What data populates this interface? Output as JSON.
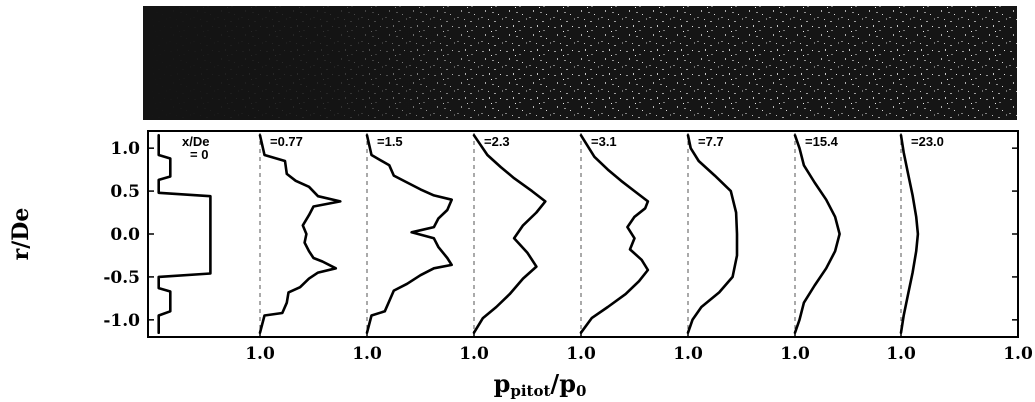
{
  "chart_data": {
    "type": "line",
    "title": "",
    "xlabel": {
      "main": "p",
      "sub": "pitot",
      "tail": "/p",
      "tail_sub": "0"
    },
    "ylabel": "r/De",
    "ylim": [
      -1.2,
      1.2
    ],
    "y_ticks": [
      "1.0",
      "0.5",
      "0.0",
      "-0.5",
      "-1.0"
    ],
    "y_tick_values": [
      1.0,
      0.5,
      0.0,
      -0.5,
      -1.0
    ],
    "x_tick_labels": [
      "1.0",
      "1.0",
      "1.0",
      "1.0",
      "1.0",
      "1.0",
      "1.0",
      "1.0"
    ],
    "panel_x_range": [
      0,
      1.2
    ],
    "stations": [
      {
        "label_line1": "x/De",
        "label_line2": "= 0",
        "points": [
          [
            0.12,
            -1.15
          ],
          [
            0.12,
            -0.95
          ],
          [
            0.25,
            -0.9
          ],
          [
            0.25,
            -0.67
          ],
          [
            0.12,
            -0.63
          ],
          [
            0.12,
            -0.5
          ],
          [
            0.7,
            -0.46
          ],
          [
            0.7,
            0.44
          ],
          [
            0.12,
            0.48
          ],
          [
            0.12,
            0.63
          ],
          [
            0.25,
            0.67
          ],
          [
            0.25,
            0.88
          ],
          [
            0.12,
            0.92
          ],
          [
            0.12,
            1.15
          ]
        ]
      },
      {
        "label_line1": "=0.77",
        "points": [
          [
            0.0,
            -1.15
          ],
          [
            0.05,
            -0.95
          ],
          [
            0.25,
            -0.92
          ],
          [
            0.3,
            -0.8
          ],
          [
            0.32,
            -0.68
          ],
          [
            0.45,
            -0.62
          ],
          [
            0.55,
            -0.52
          ],
          [
            0.65,
            -0.45
          ],
          [
            0.85,
            -0.4
          ],
          [
            0.7,
            -0.32
          ],
          [
            0.6,
            -0.28
          ],
          [
            0.55,
            -0.2
          ],
          [
            0.5,
            -0.1
          ],
          [
            0.52,
            0.0
          ],
          [
            0.48,
            0.1
          ],
          [
            0.55,
            0.22
          ],
          [
            0.6,
            0.32
          ],
          [
            0.9,
            0.38
          ],
          [
            0.65,
            0.44
          ],
          [
            0.55,
            0.55
          ],
          [
            0.4,
            0.62
          ],
          [
            0.3,
            0.7
          ],
          [
            0.28,
            0.85
          ],
          [
            0.05,
            0.92
          ],
          [
            0.0,
            1.15
          ]
        ]
      },
      {
        "label_line1": "=1.5",
        "points": [
          [
            0.0,
            -1.15
          ],
          [
            0.05,
            -0.95
          ],
          [
            0.2,
            -0.9
          ],
          [
            0.25,
            -0.78
          ],
          [
            0.3,
            -0.66
          ],
          [
            0.45,
            -0.58
          ],
          [
            0.6,
            -0.48
          ],
          [
            0.75,
            -0.4
          ],
          [
            0.95,
            -0.36
          ],
          [
            0.9,
            -0.28
          ],
          [
            0.8,
            -0.15
          ],
          [
            0.75,
            -0.05
          ],
          [
            0.5,
            0.02
          ],
          [
            0.75,
            0.08
          ],
          [
            0.8,
            0.18
          ],
          [
            0.9,
            0.28
          ],
          [
            0.95,
            0.4
          ],
          [
            0.75,
            0.45
          ],
          [
            0.6,
            0.52
          ],
          [
            0.45,
            0.6
          ],
          [
            0.3,
            0.68
          ],
          [
            0.25,
            0.8
          ],
          [
            0.05,
            0.92
          ],
          [
            0.0,
            1.15
          ]
        ]
      },
      {
        "label_line1": "=2.3",
        "points": [
          [
            0.0,
            -1.15
          ],
          [
            0.1,
            -0.98
          ],
          [
            0.25,
            -0.85
          ],
          [
            0.4,
            -0.7
          ],
          [
            0.55,
            -0.52
          ],
          [
            0.7,
            -0.38
          ],
          [
            0.6,
            -0.22
          ],
          [
            0.45,
            -0.05
          ],
          [
            0.55,
            0.1
          ],
          [
            0.7,
            0.25
          ],
          [
            0.8,
            0.38
          ],
          [
            0.65,
            0.5
          ],
          [
            0.45,
            0.65
          ],
          [
            0.3,
            0.78
          ],
          [
            0.15,
            0.92
          ],
          [
            0.0,
            1.15
          ]
        ]
      },
      {
        "label_line1": "=3.1",
        "points": [
          [
            0.0,
            -1.15
          ],
          [
            0.12,
            -0.98
          ],
          [
            0.3,
            -0.85
          ],
          [
            0.5,
            -0.7
          ],
          [
            0.65,
            -0.55
          ],
          [
            0.75,
            -0.42
          ],
          [
            0.68,
            -0.3
          ],
          [
            0.55,
            -0.18
          ],
          [
            0.6,
            -0.05
          ],
          [
            0.52,
            0.08
          ],
          [
            0.6,
            0.2
          ],
          [
            0.72,
            0.3
          ],
          [
            0.75,
            0.38
          ],
          [
            0.6,
            0.5
          ],
          [
            0.45,
            0.62
          ],
          [
            0.3,
            0.75
          ],
          [
            0.15,
            0.9
          ],
          [
            0.0,
            1.15
          ]
        ]
      },
      {
        "label_line1": "=7.7",
        "points": [
          [
            0.0,
            -1.15
          ],
          [
            0.05,
            -1.0
          ],
          [
            0.15,
            -0.85
          ],
          [
            0.35,
            -0.68
          ],
          [
            0.5,
            -0.5
          ],
          [
            0.55,
            -0.25
          ],
          [
            0.55,
            0.0
          ],
          [
            0.54,
            0.25
          ],
          [
            0.48,
            0.5
          ],
          [
            0.3,
            0.68
          ],
          [
            0.12,
            0.85
          ],
          [
            0.03,
            1.0
          ],
          [
            0.0,
            1.15
          ]
        ]
      },
      {
        "label_line1": "=15.4",
        "points": [
          [
            0.0,
            -1.15
          ],
          [
            0.05,
            -1.0
          ],
          [
            0.1,
            -0.8
          ],
          [
            0.22,
            -0.6
          ],
          [
            0.35,
            -0.4
          ],
          [
            0.45,
            -0.2
          ],
          [
            0.5,
            0.0
          ],
          [
            0.45,
            0.2
          ],
          [
            0.35,
            0.4
          ],
          [
            0.22,
            0.6
          ],
          [
            0.1,
            0.8
          ],
          [
            0.05,
            1.0
          ],
          [
            0.0,
            1.15
          ]
        ]
      },
      {
        "label_line1": "=23.0",
        "points": [
          [
            0.0,
            -1.15
          ],
          [
            0.03,
            -0.95
          ],
          [
            0.08,
            -0.7
          ],
          [
            0.13,
            -0.45
          ],
          [
            0.17,
            -0.2
          ],
          [
            0.19,
            0.0
          ],
          [
            0.17,
            0.2
          ],
          [
            0.13,
            0.45
          ],
          [
            0.08,
            0.7
          ],
          [
            0.03,
            0.95
          ],
          [
            0.0,
            1.15
          ]
        ]
      }
    ]
  }
}
